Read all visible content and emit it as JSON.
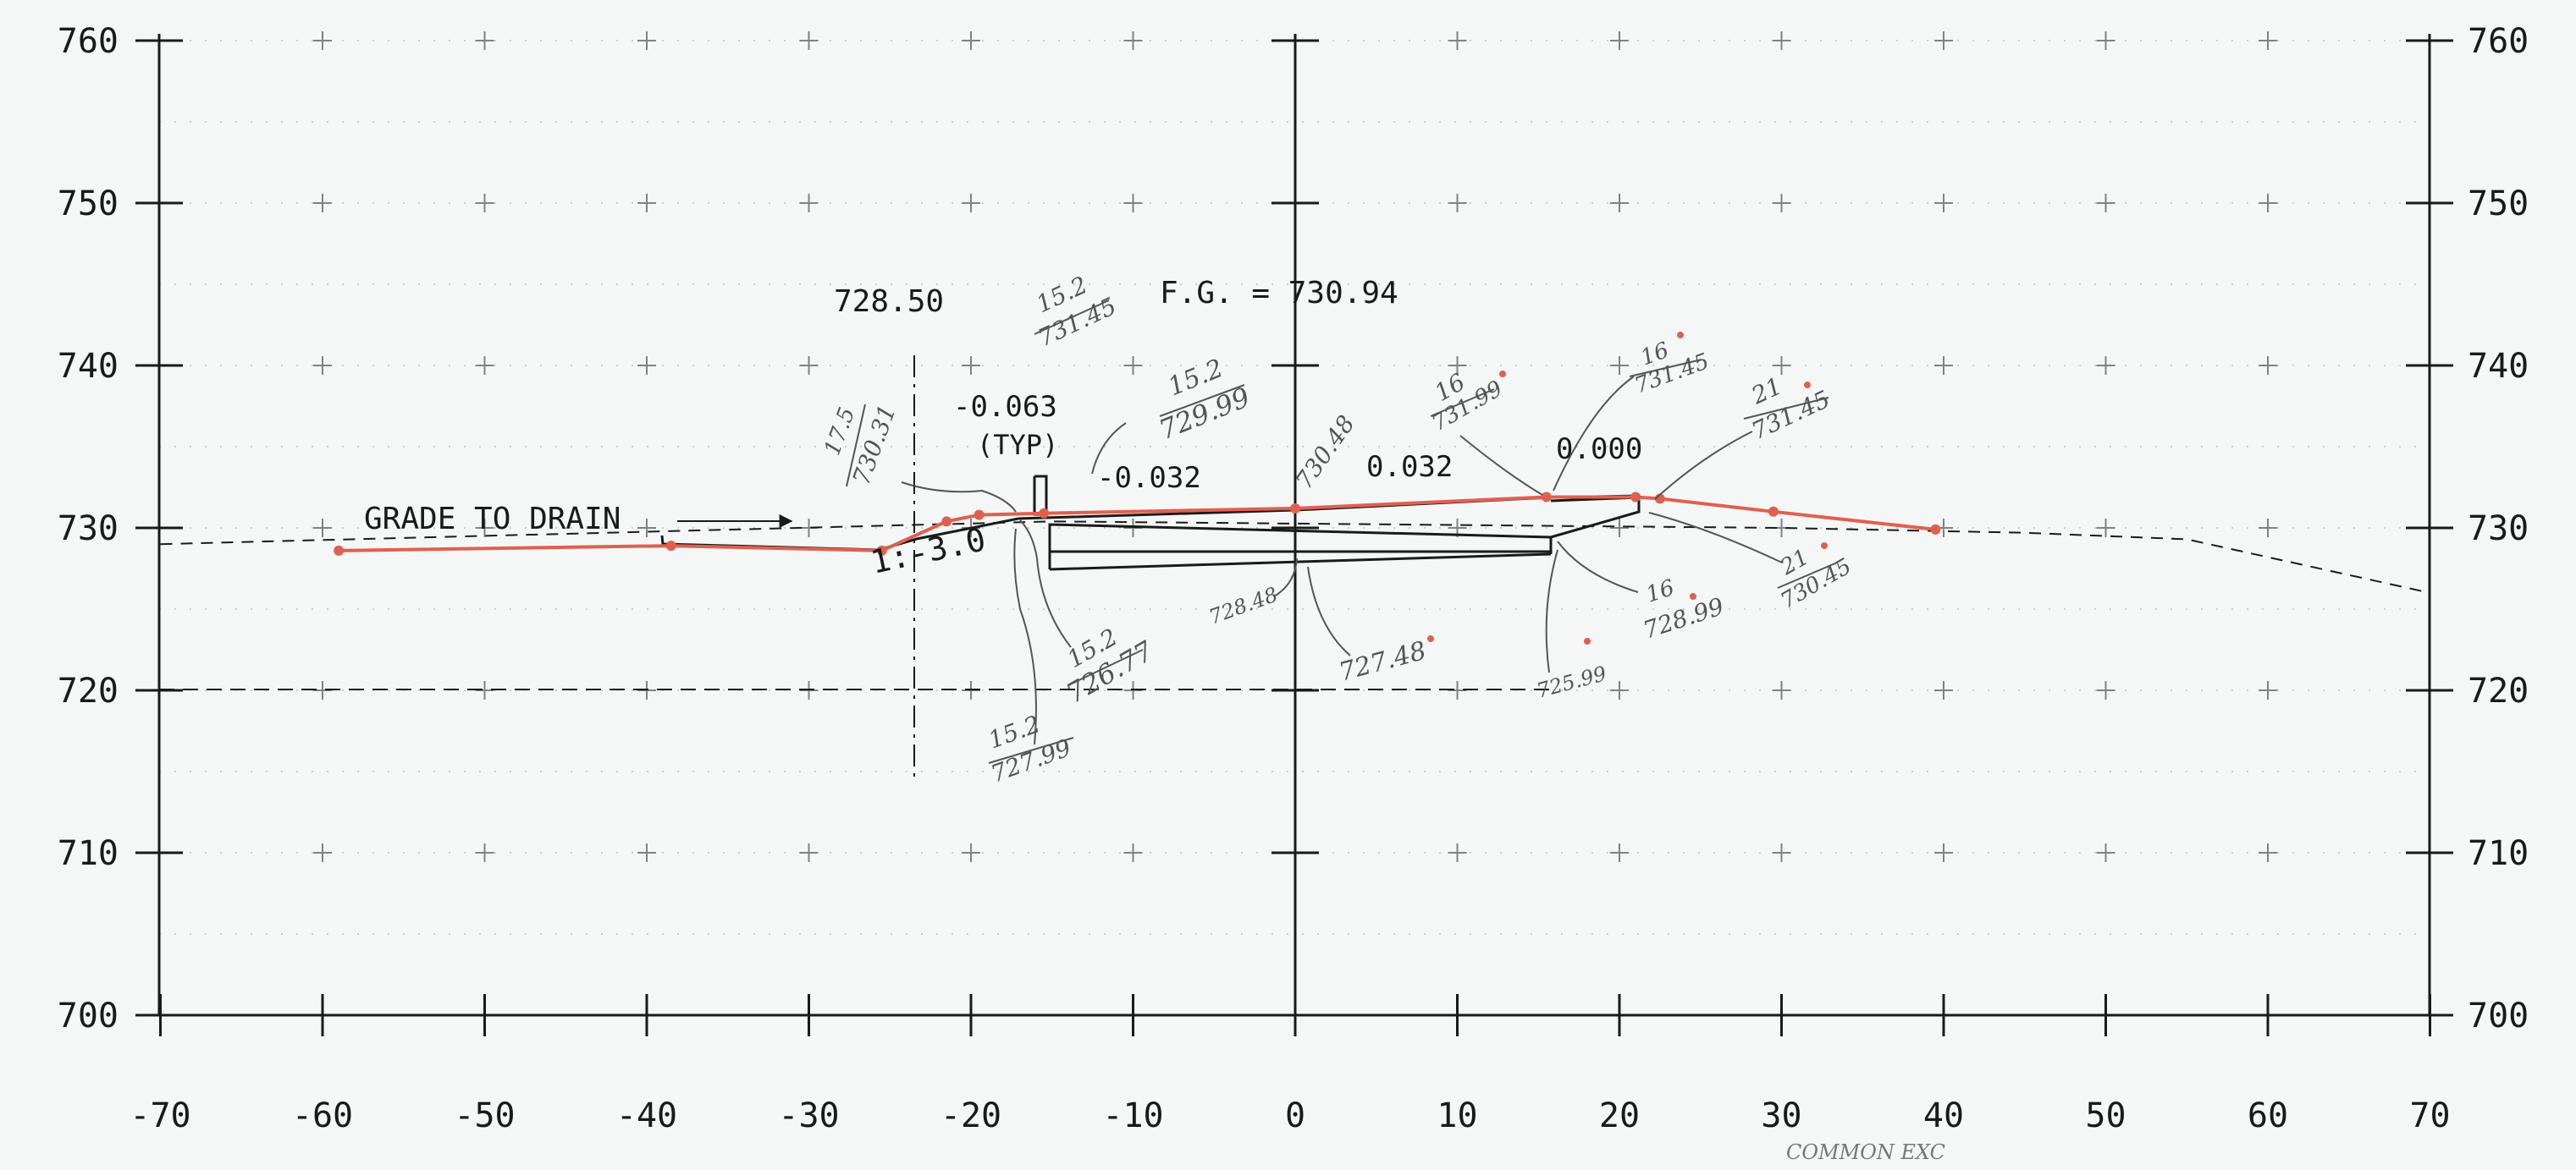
{
  "y_tick_labels": [
    "760",
    "750",
    "740",
    "730",
    "720",
    "710",
    "700"
  ],
  "x_tick_labels": [
    "-70",
    "-60",
    "-50",
    "-40",
    "-30",
    "-20",
    "-10",
    "0",
    "10",
    "20",
    "30",
    "40",
    "50",
    "60",
    "70"
  ],
  "annotations": {
    "offset_elev": "728.50",
    "fg_label": "F.G. = 730.94",
    "slope_left": "-0.063",
    "slope_typ": "(TYP)",
    "slope_mid": "-0.032",
    "slope_right": "0.032",
    "slope_shoulder": "0.000",
    "grade_note": "GRADE TO DRAIN",
    "side_slope": "1:-3.0"
  },
  "hand_notes": {
    "n1_top": "15.2",
    "n1_bot": "731.45",
    "n2_top": "15.2",
    "n2_bot": "729.99",
    "n3_top": "17.5",
    "n3_bot": "730.31",
    "n4": "730.48",
    "n5_top": "16",
    "n5_bot": "731.99",
    "n6_top": "16",
    "n6_bot": "731.45",
    "n7_top": "21",
    "n7_bot": "731.45",
    "n8_top": "15.2",
    "n8_bot": "726.77",
    "n9_top": "15.2",
    "n9_bot": "727.99",
    "n10": "728.48",
    "n11": "727.48",
    "n12_top": "16",
    "n12_bot": "728.99",
    "n13_top": "21",
    "n13_bot": "730.45",
    "n14": "725.99",
    "footer": "COMMON EXC"
  },
  "colors": {
    "ink": "#1a1a1a",
    "redline": "#e0604f",
    "pencil": "#555555",
    "background": "#f4f7f6"
  },
  "chart_data": {
    "type": "line",
    "xlim": [
      -70,
      70
    ],
    "ylim": [
      700,
      760
    ],
    "grid": "crosshair marks",
    "series": [
      {
        "x": [
          -59,
          -38.5,
          -25.5,
          -21.5,
          -19.5,
          -15.5,
          0,
          15.5,
          21,
          22.5,
          29.5,
          39.5
        ],
        "y": [
          728.6,
          728.9,
          728.6,
          730.4,
          730.8,
          730.9,
          731.2,
          731.9,
          731.9,
          731.8,
          731.0,
          729.9
        ]
      }
    ],
    "existing_ground": {
      "x": [
        -70,
        -15,
        30,
        45,
        55,
        70
      ],
      "y": [
        729,
        730.4,
        730.0,
        729.7,
        729.3,
        726
      ]
    }
  }
}
